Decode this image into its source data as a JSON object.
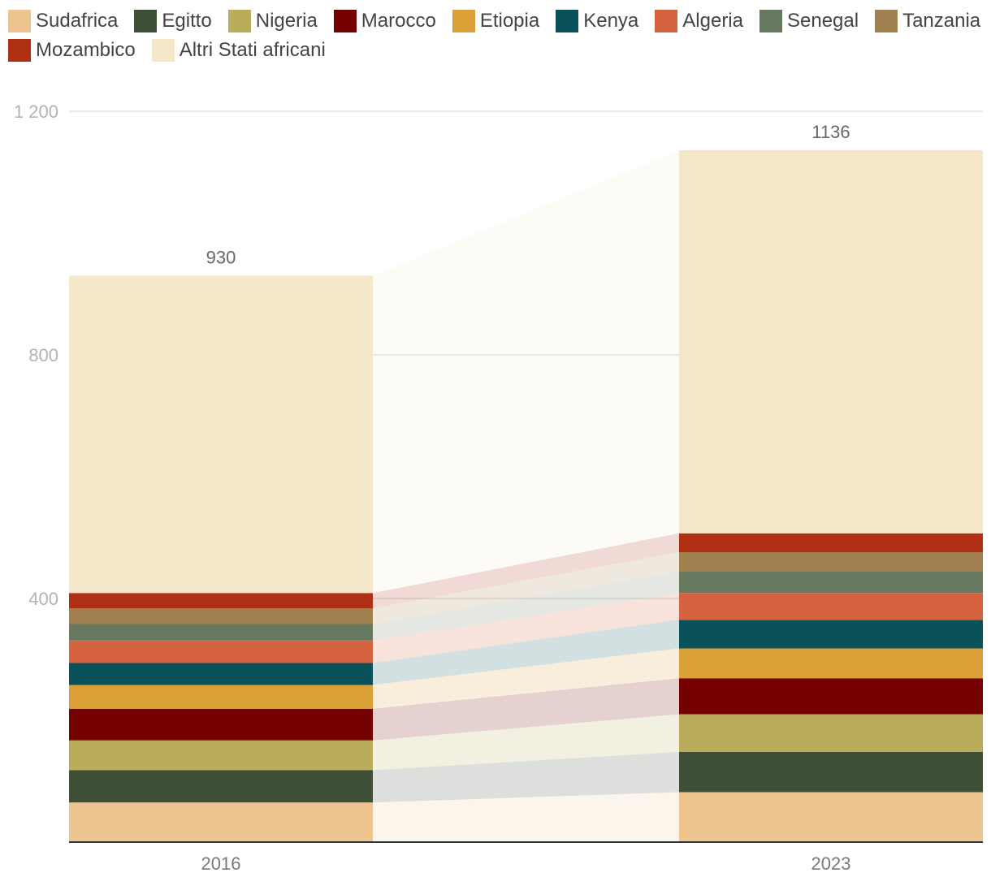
{
  "chart_data": {
    "type": "bar",
    "stacked": true,
    "categories": [
      "2016",
      "2023"
    ],
    "series": [
      {
        "name": "Sudafrica",
        "color": "#EEC591",
        "values": [
          65,
          82
        ]
      },
      {
        "name": "Egitto",
        "color": "#3D4F35",
        "values": [
          53,
          66
        ]
      },
      {
        "name": "Nigeria",
        "color": "#B9AC5A",
        "values": [
          49,
          62
        ]
      },
      {
        "name": "Marocco",
        "color": "#750000",
        "values": [
          52,
          59
        ]
      },
      {
        "name": "Etiopia",
        "color": "#DCA038",
        "values": [
          39,
          49
        ]
      },
      {
        "name": "Kenya",
        "color": "#0A525A",
        "values": [
          36,
          47
        ]
      },
      {
        "name": "Algeria",
        "color": "#D6633F",
        "values": [
          37,
          44
        ]
      },
      {
        "name": "Senegal",
        "color": "#67795E",
        "values": [
          27,
          35
        ]
      },
      {
        "name": "Tanzania",
        "color": "#A0804E",
        "values": [
          26,
          32
        ]
      },
      {
        "name": "Mozambico",
        "color": "#B03016",
        "values": [
          25,
          31
        ]
      },
      {
        "name": "Altri Stati africani",
        "color": "#F5E8C8",
        "values": [
          521,
          629
        ]
      }
    ],
    "totals": [
      930,
      1136
    ],
    "total_labels": [
      "930",
      "1136"
    ],
    "yticks": [
      400,
      800,
      1200
    ],
    "ytick_labels": [
      "400",
      "800",
      "1 200"
    ],
    "ylim": [
      0,
      1200
    ],
    "legend_position": "top",
    "grid": true,
    "title": "",
    "xlabel": "",
    "ylabel": ""
  }
}
